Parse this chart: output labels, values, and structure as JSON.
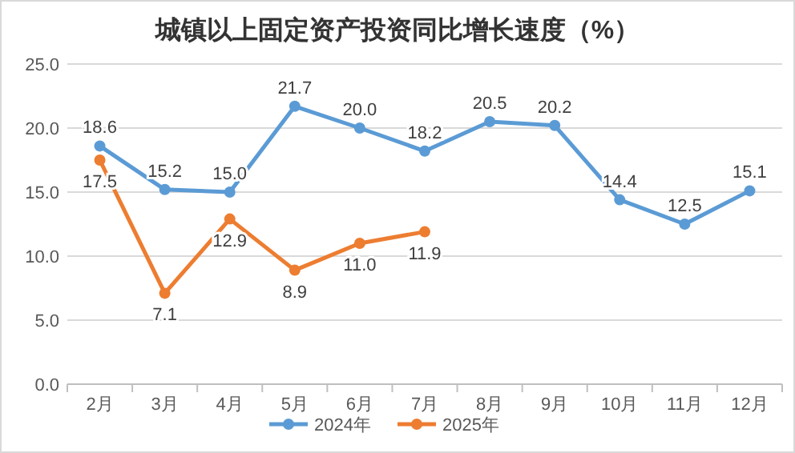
{
  "chart_data": {
    "type": "line",
    "title": "城镇以上固定资产投资同比增长速度（%）",
    "categories": [
      "2月",
      "3月",
      "4月",
      "5月",
      "6月",
      "7月",
      "8月",
      "9月",
      "10月",
      "11月",
      "12月"
    ],
    "series": [
      {
        "name": "2024年",
        "color": "#5b9bd5",
        "values": [
          18.6,
          15.2,
          15.0,
          21.7,
          20.0,
          18.2,
          20.5,
          20.2,
          14.4,
          12.5,
          15.1
        ],
        "value_labels": [
          "18.6",
          "15.2",
          "15.0",
          "21.7",
          "20.0",
          "18.2",
          "20.5",
          "20.2",
          "14.4",
          "12.5",
          "15.1"
        ]
      },
      {
        "name": "2025年",
        "color": "#ed7d31",
        "values": [
          17.5,
          7.1,
          12.9,
          8.9,
          11.0,
          11.9,
          null,
          null,
          null,
          null,
          null
        ],
        "value_labels": [
          "17.5",
          "7.1",
          "12.9",
          "8.9",
          "11.0",
          "11.9",
          null,
          null,
          null,
          null,
          null
        ]
      }
    ],
    "ylim": [
      0,
      25
    ],
    "yticks": [
      {
        "value": 0,
        "label": "0.0"
      },
      {
        "value": 5,
        "label": "5.0"
      },
      {
        "value": 10,
        "label": "10.0"
      },
      {
        "value": 15,
        "label": "15.0"
      },
      {
        "value": 20,
        "label": "20.0"
      },
      {
        "value": 25,
        "label": "25.0"
      }
    ],
    "grid": "y",
    "legend": "bottom",
    "marker": "circle",
    "line_style": "solid"
  }
}
